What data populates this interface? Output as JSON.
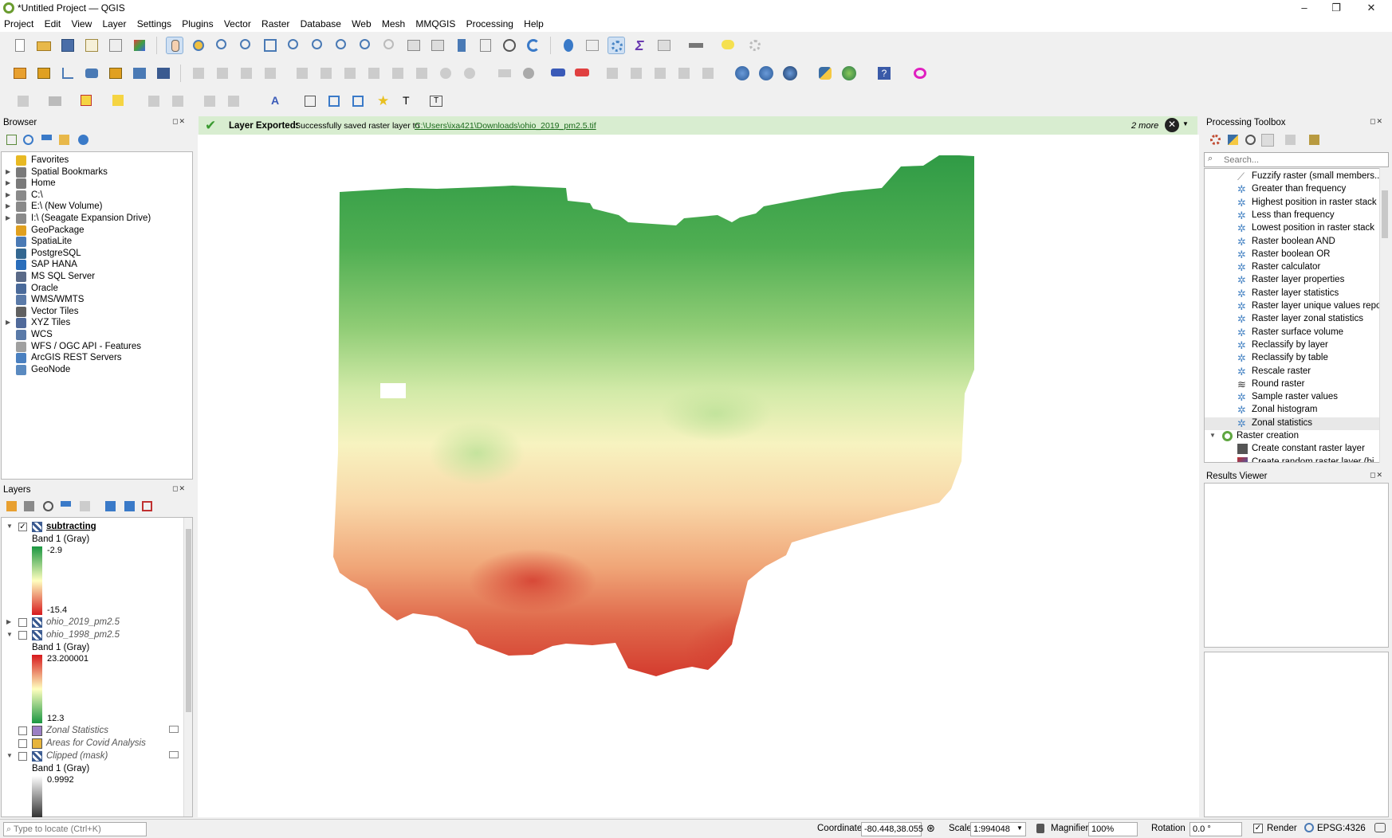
{
  "window": {
    "title": "*Untitled Project — QGIS",
    "minimize": "–",
    "maximize": "❐",
    "close": "✕"
  },
  "menu": [
    "Project",
    "Edit",
    "View",
    "Layer",
    "Settings",
    "Plugins",
    "Vector",
    "Raster",
    "Database",
    "Web",
    "Mesh",
    "MMQGIS",
    "Processing",
    "Help"
  ],
  "browser": {
    "title": "Browser",
    "items": [
      {
        "label": "Favorites",
        "icon": "star-icon",
        "color": "#e8b923",
        "expand": ""
      },
      {
        "label": "Spatial Bookmarks",
        "icon": "bookmark-icon",
        "color": "#7a7a7a",
        "expand": "▶"
      },
      {
        "label": "Home",
        "icon": "home-folder-icon",
        "color": "#7a7a7a",
        "expand": "▶"
      },
      {
        "label": "C:\\",
        "icon": "folder-icon",
        "color": "#8a8a8a",
        "expand": "▶"
      },
      {
        "label": "E:\\ (New Volume)",
        "icon": "folder-icon",
        "color": "#8a8a8a",
        "expand": "▶"
      },
      {
        "label": "I:\\ (Seagate Expansion Drive)",
        "icon": "folder-icon",
        "color": "#8a8a8a",
        "expand": "▶"
      },
      {
        "label": "GeoPackage",
        "icon": "geopackage-icon",
        "color": "#e0a020",
        "expand": ""
      },
      {
        "label": "SpatiaLite",
        "icon": "spatialite-icon",
        "color": "#4a7ab5",
        "expand": ""
      },
      {
        "label": "PostgreSQL",
        "icon": "postgresql-icon",
        "color": "#336791",
        "expand": ""
      },
      {
        "label": "SAP HANA",
        "icon": "sap-hana-icon",
        "color": "#2a6ebb",
        "expand": ""
      },
      {
        "label": "MS SQL Server",
        "icon": "mssql-icon",
        "color": "#5a6a88",
        "expand": ""
      },
      {
        "label": "Oracle",
        "icon": "oracle-icon",
        "color": "#4a6a9a",
        "expand": ""
      },
      {
        "label": "WMS/WMTS",
        "icon": "globe-icon",
        "color": "#5a7aa8",
        "expand": ""
      },
      {
        "label": "Vector Tiles",
        "icon": "vector-tiles-icon",
        "color": "#606060",
        "expand": ""
      },
      {
        "label": "XYZ Tiles",
        "icon": "xyz-tiles-icon",
        "color": "#506a9a",
        "expand": "▶"
      },
      {
        "label": "WCS",
        "icon": "globe-icon",
        "color": "#5a7aa8",
        "expand": ""
      },
      {
        "label": "WFS / OGC API - Features",
        "icon": "wfs-icon",
        "color": "#a0a0a0",
        "expand": ""
      },
      {
        "label": "ArcGIS REST Servers",
        "icon": "arcgis-icon",
        "color": "#4a80c0",
        "expand": ""
      },
      {
        "label": "GeoNode",
        "icon": "geonode-icon",
        "color": "#5a8ac0",
        "expand": ""
      }
    ]
  },
  "layers": {
    "title": "Layers",
    "rows": [
      {
        "type": "layer",
        "label": "subtracting",
        "checked": "✓",
        "expand": "▼",
        "style": "bold-underline"
      },
      {
        "type": "text",
        "label": "Band 1 (Gray)"
      },
      {
        "type": "ramp",
        "top": "-2.9",
        "bottom": "-15.4",
        "scheme": "green-red"
      },
      {
        "type": "layer",
        "label": "ohio_2019_pm2.5",
        "checked": "",
        "expand": "▶",
        "style": "italic"
      },
      {
        "type": "layer",
        "label": "ohio_1998_pm2.5",
        "checked": "",
        "expand": "▼",
        "style": "italic"
      },
      {
        "type": "text",
        "label": "Band 1 (Gray)"
      },
      {
        "type": "ramp",
        "top": "23.200001",
        "bottom": "12.3",
        "scheme": "red-green"
      },
      {
        "type": "layer",
        "label": "Zonal Statistics",
        "checked": "",
        "expand": "",
        "style": "italic",
        "swatch": "#9b7fc4"
      },
      {
        "type": "layer",
        "label": "Areas for Covid Analysis",
        "checked": "",
        "expand": "",
        "style": "italic",
        "swatch": "#e6b43c"
      },
      {
        "type": "layer",
        "label": "Clipped (mask)",
        "checked": "",
        "expand": "▼",
        "style": "italic"
      },
      {
        "type": "text",
        "label": "Band 1 (Gray)"
      },
      {
        "type": "ramp-gray",
        "top": "0.9992",
        "bottom": ""
      }
    ]
  },
  "message": {
    "title": "Layer Exported:",
    "text": "Successfully saved raster layer to",
    "link": "C:\\Users\\ixa421\\Downloads\\ohio_2019_pm2.5.tif",
    "more": "2 more"
  },
  "processing": {
    "title": "Processing Toolbox",
    "search_placeholder": "Search...",
    "items": [
      {
        "label": "Fuzzify raster (small members...",
        "icon": "fuzzify-icon"
      },
      {
        "label": "Greater than frequency",
        "icon": "gear-icon"
      },
      {
        "label": "Highest position in raster stack",
        "icon": "gear-icon"
      },
      {
        "label": "Less than frequency",
        "icon": "gear-icon"
      },
      {
        "label": "Lowest position in raster stack",
        "icon": "gear-icon"
      },
      {
        "label": "Raster boolean AND",
        "icon": "gear-icon"
      },
      {
        "label": "Raster boolean OR",
        "icon": "gear-icon"
      },
      {
        "label": "Raster calculator",
        "icon": "gear-icon"
      },
      {
        "label": "Raster layer properties",
        "icon": "gear-icon"
      },
      {
        "label": "Raster layer statistics",
        "icon": "gear-icon"
      },
      {
        "label": "Raster layer unique values report",
        "icon": "gear-icon"
      },
      {
        "label": "Raster layer zonal statistics",
        "icon": "gear-icon"
      },
      {
        "label": "Raster surface volume",
        "icon": "gear-icon"
      },
      {
        "label": "Reclassify by layer",
        "icon": "gear-icon"
      },
      {
        "label": "Reclassify by table",
        "icon": "gear-icon"
      },
      {
        "label": "Rescale raster",
        "icon": "gear-icon"
      },
      {
        "label": "Round raster",
        "icon": "round-raster-icon"
      },
      {
        "label": "Sample raster values",
        "icon": "gear-icon"
      },
      {
        "label": "Zonal histogram",
        "icon": "gear-icon"
      },
      {
        "label": "Zonal statistics",
        "icon": "gear-icon",
        "selected": true
      }
    ],
    "group": "Raster creation",
    "group_items": [
      {
        "label": "Create constant raster layer",
        "icon": "constant-raster-icon"
      },
      {
        "label": "Create random raster layer (bi...",
        "icon": "random-raster-icon"
      }
    ]
  },
  "results": {
    "title": "Results Viewer"
  },
  "status": {
    "locate_placeholder": "Type to locate (Ctrl+K)",
    "coordinate_label": "Coordinate",
    "coordinate": "-80.448,38.055",
    "scale_label": "Scale",
    "scale": "1:994048",
    "magnifier_label": "Magnifier",
    "magnifier": "100%",
    "rotation_label": "Rotation",
    "rotation": "0.0 °",
    "render_label": "Render",
    "crs": "EPSG:4326"
  },
  "colors": {
    "accent_green": "#5fa640",
    "message_bg": "#d8edd0",
    "ramp_green": "#1a9641",
    "ramp_yellow": "#ffffbf",
    "ramp_red": "#d7191c"
  }
}
